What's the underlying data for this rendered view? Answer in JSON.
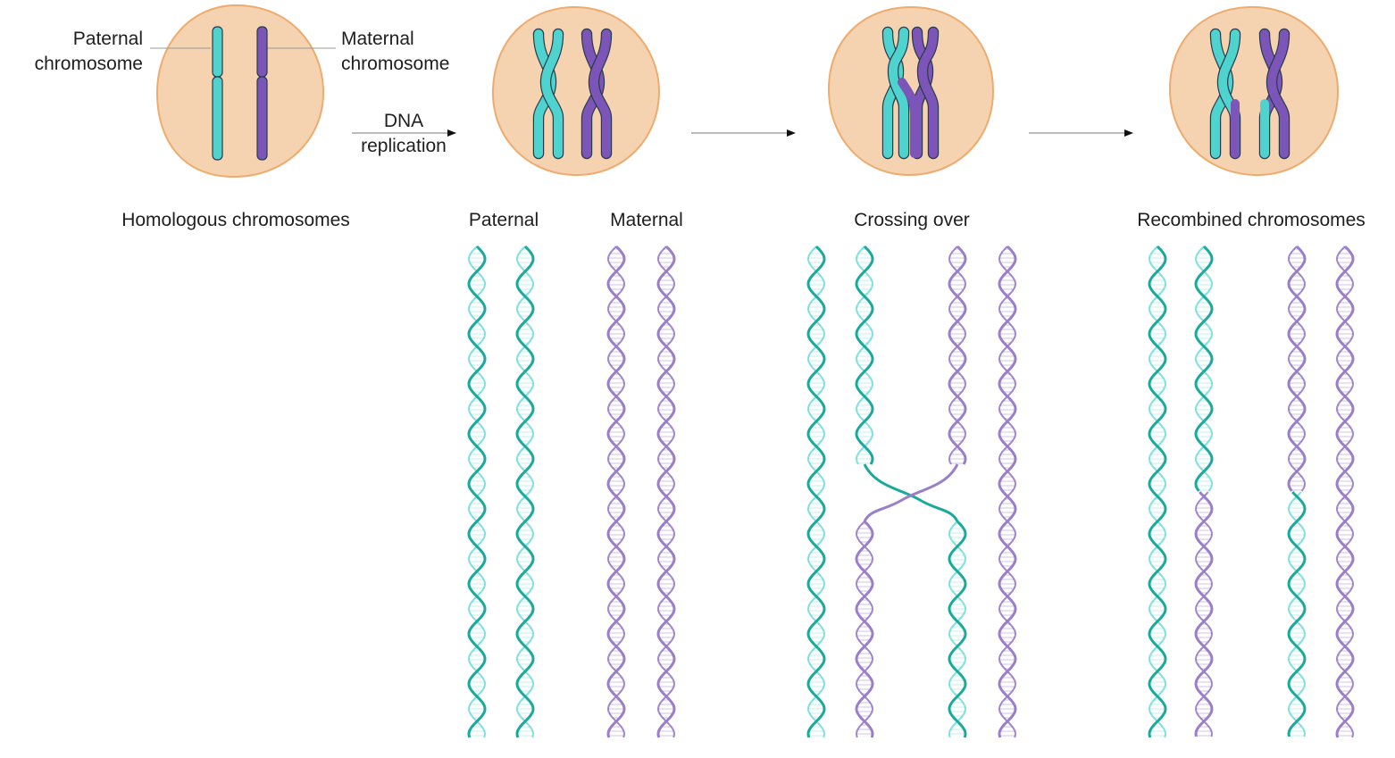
{
  "colors": {
    "paternal": "#4fd3cf",
    "paternal_dark": "#1aa99a",
    "maternal": "#7b55b8",
    "maternal_dark": "#9a7fc8",
    "cell_fill": "#f6d3b0",
    "cell_stroke": "#eeab6e",
    "outline": "#2a3a4a"
  },
  "labels": {
    "paternal_chromosome": [
      "Paternal",
      "chromosome"
    ],
    "maternal_chromosome": [
      "Maternal",
      "chromosome"
    ],
    "dna_replication": [
      "DNA",
      "replication"
    ],
    "homologous": "Homologous chromosomes",
    "paternal": "Paternal",
    "maternal": "Maternal",
    "crossing_over": "Crossing over",
    "recombined": "Recombined chromosomes"
  },
  "stages": [
    "homologous-chromosomes",
    "replicated-chromosomes",
    "crossing-over",
    "recombined-chromosomes"
  ],
  "helix_panels": [
    {
      "name": "replication",
      "strands": [
        [
          "paternal"
        ],
        [
          "paternal"
        ],
        [
          "maternal"
        ],
        [
          "maternal"
        ]
      ]
    },
    {
      "name": "crossing-over",
      "strands": [
        [
          "paternal"
        ],
        [
          "paternal",
          "maternal"
        ],
        [
          "maternal",
          "paternal"
        ],
        [
          "maternal"
        ]
      ]
    },
    {
      "name": "recombined",
      "strands": [
        [
          "paternal"
        ],
        [
          "paternal",
          "maternal"
        ],
        [
          "maternal",
          "paternal"
        ],
        [
          "maternal"
        ]
      ]
    }
  ]
}
